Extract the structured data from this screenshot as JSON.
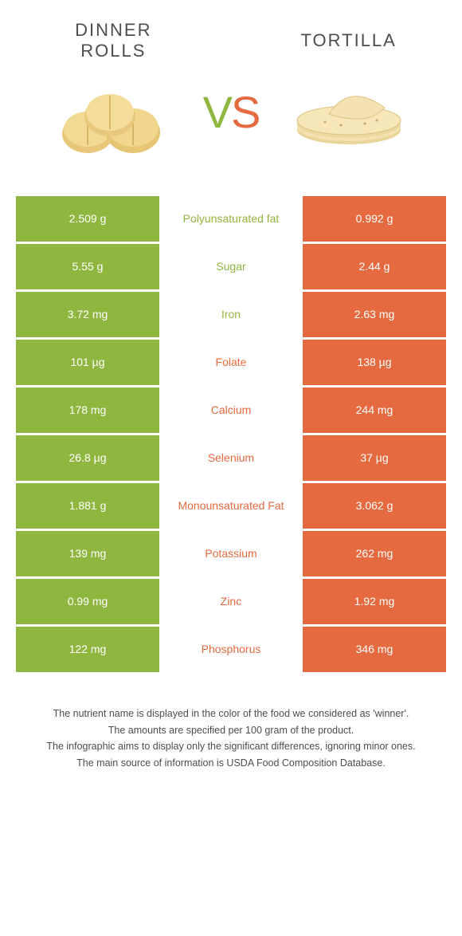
{
  "colors": {
    "left": "#8fb63f",
    "right": "#e56a3f",
    "row_gap": "#ffffff",
    "title_text": "#4d4d4d"
  },
  "header": {
    "left_title": "DINNER\nROLLS",
    "right_title": "TORTILLA",
    "vs_left_char": "V",
    "vs_right_char": "S"
  },
  "rows": [
    {
      "left": "2.509 g",
      "label": "Polyunsaturated fat",
      "right": "0.992 g",
      "winner": "left"
    },
    {
      "left": "5.55 g",
      "label": "Sugar",
      "right": "2.44 g",
      "winner": "left"
    },
    {
      "left": "3.72 mg",
      "label": "Iron",
      "right": "2.63 mg",
      "winner": "left"
    },
    {
      "left": "101 µg",
      "label": "Folate",
      "right": "138 µg",
      "winner": "right"
    },
    {
      "left": "178 mg",
      "label": "Calcium",
      "right": "244 mg",
      "winner": "right"
    },
    {
      "left": "26.8 µg",
      "label": "Selenium",
      "right": "37 µg",
      "winner": "right"
    },
    {
      "left": "1.881 g",
      "label": "Monounsaturated Fat",
      "right": "3.062 g",
      "winner": "right"
    },
    {
      "left": "139 mg",
      "label": "Potassium",
      "right": "262 mg",
      "winner": "right"
    },
    {
      "left": "0.99 mg",
      "label": "Zinc",
      "right": "1.92 mg",
      "winner": "right"
    },
    {
      "left": "122 mg",
      "label": "Phosphorus",
      "right": "346 mg",
      "winner": "right"
    }
  ],
  "footnotes": [
    "The nutrient name is displayed in the color of the food we considered as 'winner'.",
    "The amounts are specified per 100 gram of the product.",
    "The infographic aims to display only the significant differences, ignoring minor ones.",
    "The main source of information is USDA Food Composition Database."
  ]
}
